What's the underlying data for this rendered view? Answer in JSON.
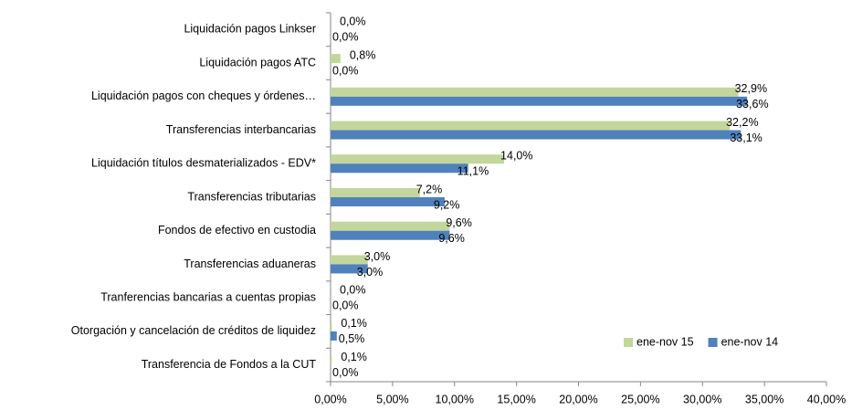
{
  "chart_data": {
    "type": "bar",
    "orientation": "horizontal",
    "categories": [
      "Liquidación pagos Linkser",
      "Liquidación pagos ATC",
      "Liquidación pagos con cheques y órdenes…",
      "Transferencias interbancarias ",
      "Liquidación títulos desmaterializados - EDV*",
      "Transferencias tributarias ",
      "Fondos de efectivo en custodia",
      "Transferencias aduaneras",
      "Tranferencias bancarias a cuentas propias",
      "Otorgación y cancelación de créditos de liquidez",
      "Transferencia de Fondos a la CUT"
    ],
    "series": [
      {
        "name": "ene-nov 15",
        "color": "#c3d69b",
        "label_color": "#77933c",
        "values": [
          0.0,
          0.8,
          32.9,
          32.2,
          14.0,
          7.2,
          9.6,
          3.0,
          0.0,
          0.1,
          0.1
        ],
        "value_labels": [
          "0,0%",
          "0,8%",
          "32,9%",
          "32,2%",
          "14,0%",
          "7,2%",
          "9,6%",
          "3,0%",
          "0,0%",
          "0,1%",
          "0,1%"
        ]
      },
      {
        "name": "ene-nov 14",
        "color": "#4f81bd",
        "label_color": "#1f3864",
        "values": [
          0.0,
          0.0,
          33.6,
          33.1,
          11.1,
          9.2,
          9.6,
          3.0,
          0.0,
          0.5,
          0.0
        ],
        "value_labels": [
          "0,0%",
          "0,0%",
          "33,6%",
          "33,1%",
          "11,1%",
          "9,2%",
          "9,6%",
          "3,0%",
          "0,0%",
          "0,5%",
          "0,0%"
        ]
      }
    ],
    "xlim": [
      0,
      40
    ],
    "xticks": [
      {
        "value": 0,
        "label": "0,00%"
      },
      {
        "value": 5,
        "label": "5,00%"
      },
      {
        "value": 10,
        "label": "10,00%"
      },
      {
        "value": 15,
        "label": "15,00%"
      },
      {
        "value": 20,
        "label": "20,00%"
      },
      {
        "value": 25,
        "label": "25,00%"
      },
      {
        "value": 30,
        "label": "30,00%"
      },
      {
        "value": 35,
        "label": "35,00%"
      },
      {
        "value": 40,
        "label": "40,00%"
      }
    ],
    "legend": "lower right",
    "grid": false
  }
}
